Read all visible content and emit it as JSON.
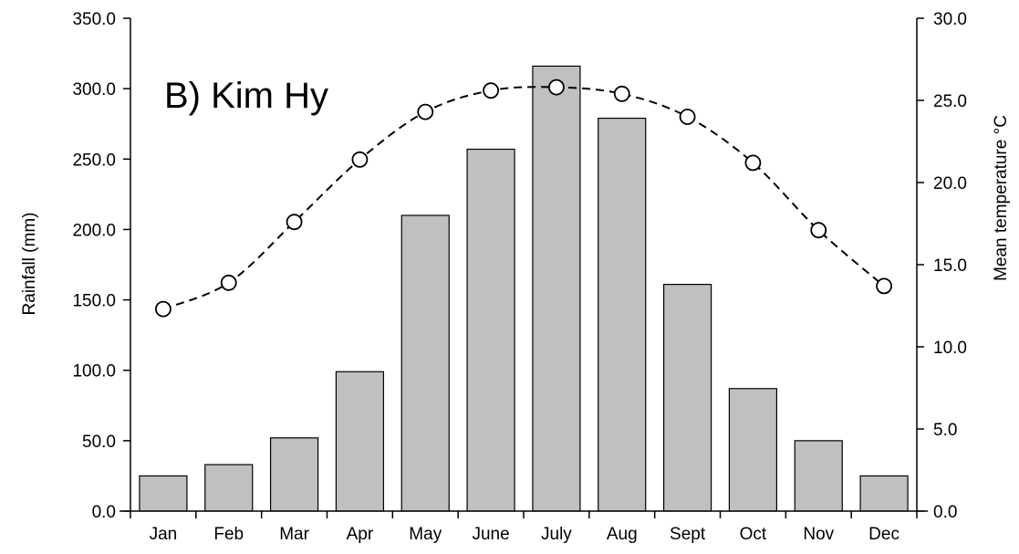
{
  "chart_data": {
    "type": "bar",
    "title": "B) Kim Hy",
    "categories": [
      "Jan",
      "Feb",
      "Mar",
      "Apr",
      "May",
      "June",
      "July",
      "Aug",
      "Sept",
      "Oct",
      "Nov",
      "Dec"
    ],
    "series": [
      {
        "name": "Rainfall",
        "type": "bar",
        "axis": "left",
        "color": "#c0c0c0",
        "values": [
          25,
          33,
          52,
          99,
          210,
          257,
          316,
          279,
          161,
          87,
          50,
          25
        ]
      },
      {
        "name": "Mean temperature",
        "type": "line",
        "axis": "right",
        "color": "#000000",
        "line_style": "dashed",
        "marker": "open-circle",
        "values": [
          12.3,
          13.9,
          17.6,
          21.4,
          24.3,
          25.6,
          25.8,
          25.4,
          24.0,
          21.2,
          17.1,
          13.7
        ]
      }
    ],
    "ylabel": "Rainfall (mm)",
    "ylabel_right": "Mean temperature °C",
    "ylim": [
      0,
      350
    ],
    "ylim_right": [
      0,
      30
    ],
    "yticks": [
      "0.0",
      "50.0",
      "100.0",
      "150.0",
      "200.0",
      "250.0",
      "300.0",
      "350.0"
    ],
    "yticks_right": [
      "0.0",
      "5.0",
      "10.0",
      "15.0",
      "20.0",
      "25.0",
      "30.0"
    ],
    "grid": false,
    "legend": "none"
  }
}
